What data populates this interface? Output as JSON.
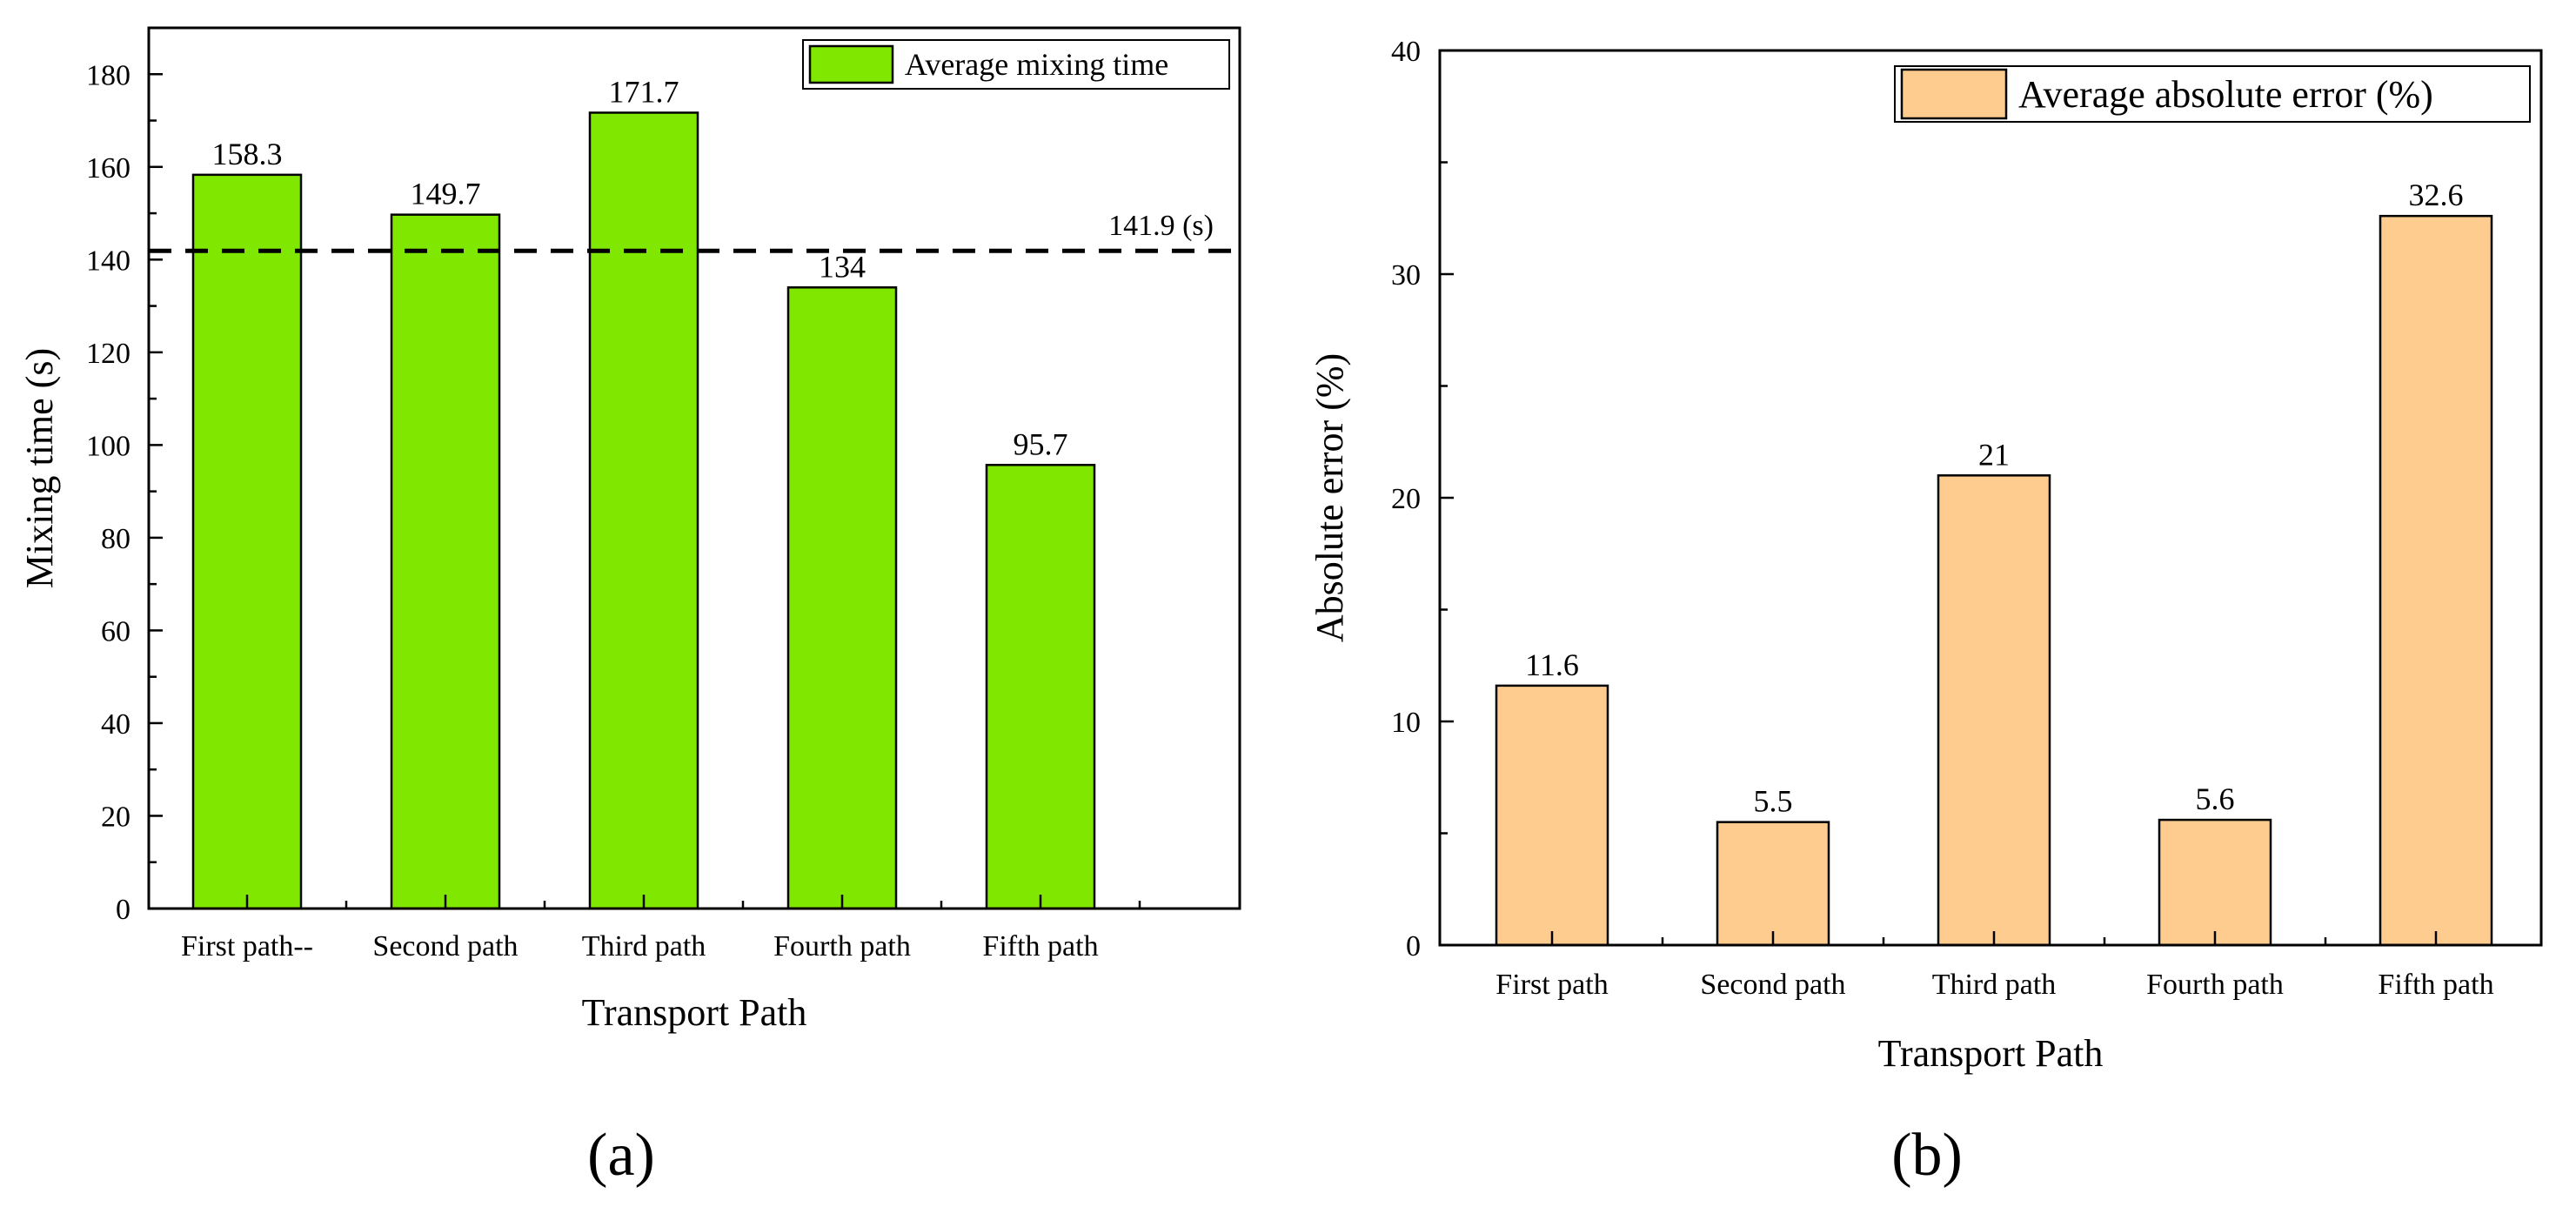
{
  "figure": {
    "panel_labels": [
      "(a)",
      "(b)"
    ]
  },
  "chart_data": [
    {
      "type": "bar",
      "panel": "(a)",
      "categories": [
        "First path--",
        "Second path",
        "Third path",
        "Fourth path",
        "Fifth path"
      ],
      "series": [
        {
          "name": "Average mixing time",
          "values": [
            158.3,
            149.7,
            171.7,
            134,
            95.7
          ],
          "color": "#80e800"
        }
      ],
      "data_labels": [
        "158.3",
        "149.7",
        "171.7",
        "134",
        "95.7"
      ],
      "reference_line": {
        "value": 141.9,
        "label": "141.9 (s)",
        "style": "dashed"
      },
      "xlabel": "Transport Path",
      "ylabel": "Mixing time (s)",
      "ylim": [
        0,
        190
      ],
      "yticks": [
        0,
        20,
        40,
        60,
        80,
        100,
        120,
        140,
        160,
        180
      ],
      "legend_position": "top-right",
      "grid": false
    },
    {
      "type": "bar",
      "panel": "(b)",
      "categories": [
        "First path",
        "Second path",
        "Third path",
        "Fourth path",
        "Fifth path"
      ],
      "series": [
        {
          "name": "Average absolute error (%)",
          "values": [
            11.6,
            5.5,
            21,
            5.6,
            32.6
          ],
          "color": "#ffcc8f"
        }
      ],
      "data_labels": [
        "11.6",
        "5.5",
        "21",
        "5.6",
        "32.6"
      ],
      "xlabel": "Transport Path",
      "ylabel": "Absolute error (%)",
      "ylim": [
        0,
        40
      ],
      "yticks": [
        0,
        10,
        20,
        30,
        40
      ],
      "legend_position": "top-right",
      "grid": false
    }
  ]
}
